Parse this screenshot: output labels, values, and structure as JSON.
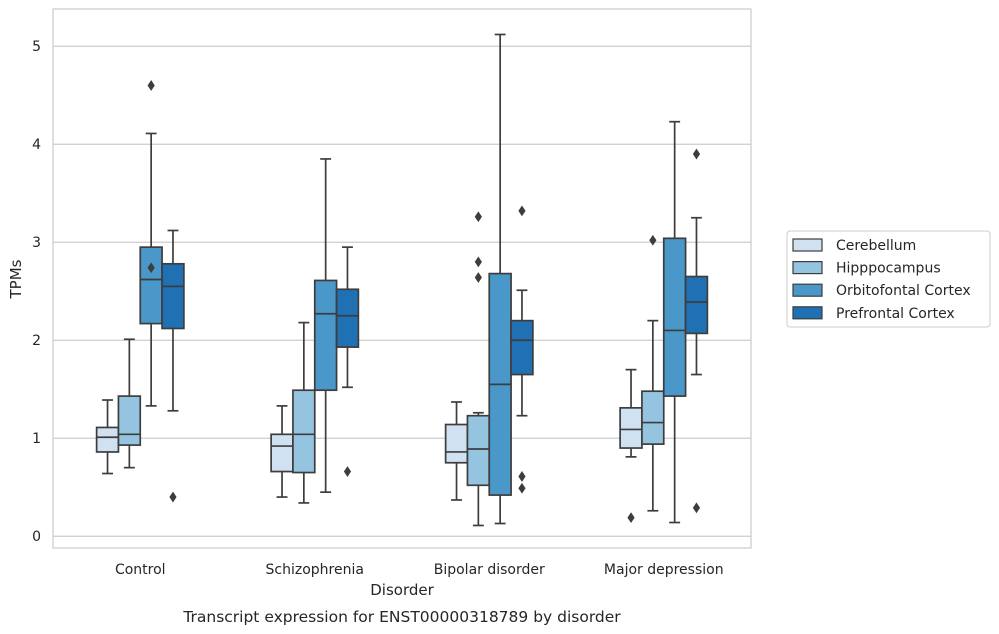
{
  "chart_data": {
    "type": "box",
    "xlabel": "Disorder",
    "ylabel": "TPMs",
    "caption": "Transcript expression for ENST00000318789 by disorder",
    "ylim": [
      -0.12,
      5.38
    ],
    "yticks": [
      0,
      1,
      2,
      3,
      4,
      5
    ],
    "grid": "horizontal",
    "legend_placement": "right-center",
    "categories": [
      "Control",
      "Schizophrenia",
      "Bipolar disorder",
      "Major depression"
    ],
    "series": [
      {
        "name": "Cerebellum",
        "color": "#d0e1f2",
        "boxes": [
          {
            "whisker_low": 0.64,
            "q1": 0.86,
            "median": 1.01,
            "q3": 1.11,
            "whisker_high": 1.39,
            "outliers": []
          },
          {
            "whisker_low": 0.4,
            "q1": 0.66,
            "median": 0.92,
            "q3": 1.04,
            "whisker_high": 1.33,
            "outliers": []
          },
          {
            "whisker_low": 0.37,
            "q1": 0.75,
            "median": 0.86,
            "q3": 1.14,
            "whisker_high": 1.37,
            "outliers": []
          },
          {
            "whisker_low": 0.81,
            "q1": 0.9,
            "median": 1.09,
            "q3": 1.31,
            "whisker_high": 1.7,
            "outliers": [
              0.19
            ]
          }
        ]
      },
      {
        "name": "Hipppocampus",
        "color": "#94c4df",
        "boxes": [
          {
            "whisker_low": 0.7,
            "q1": 0.93,
            "median": 1.04,
            "q3": 1.43,
            "whisker_high": 2.01,
            "outliers": []
          },
          {
            "whisker_low": 0.34,
            "q1": 0.65,
            "median": 1.04,
            "q3": 1.49,
            "whisker_high": 2.18,
            "outliers": []
          },
          {
            "whisker_low": 0.11,
            "q1": 0.52,
            "median": 0.89,
            "q3": 1.23,
            "whisker_high": 1.26,
            "outliers": [
              2.64,
              2.8,
              3.26
            ]
          },
          {
            "whisker_low": 0.26,
            "q1": 0.94,
            "median": 1.16,
            "q3": 1.48,
            "whisker_high": 2.2,
            "outliers": [
              3.02
            ]
          }
        ]
      },
      {
        "name": "Orbitofontal Cortex",
        "color": "#4a98c9",
        "boxes": [
          {
            "whisker_low": 1.33,
            "q1": 2.17,
            "median": 2.62,
            "q3": 2.95,
            "whisker_high": 4.11,
            "outliers": [
              2.74,
              4.6
            ]
          },
          {
            "whisker_low": 0.45,
            "q1": 1.49,
            "median": 2.27,
            "q3": 2.61,
            "whisker_high": 3.85,
            "outliers": []
          },
          {
            "whisker_low": 0.13,
            "q1": 0.42,
            "median": 1.55,
            "q3": 2.68,
            "whisker_high": 5.12,
            "outliers": []
          },
          {
            "whisker_low": 0.14,
            "q1": 1.43,
            "median": 2.1,
            "q3": 3.04,
            "whisker_high": 4.23,
            "outliers": []
          }
        ]
      },
      {
        "name": "Prefrontal Cortex",
        "color": "#2070b4",
        "boxes": [
          {
            "whisker_low": 1.28,
            "q1": 2.12,
            "median": 2.55,
            "q3": 2.78,
            "whisker_high": 3.12,
            "outliers": [
              0.4
            ]
          },
          {
            "whisker_low": 1.52,
            "q1": 1.93,
            "median": 2.25,
            "q3": 2.52,
            "whisker_high": 2.95,
            "outliers": [
              0.66
            ]
          },
          {
            "whisker_low": 1.23,
            "q1": 1.65,
            "median": 2.0,
            "q3": 2.2,
            "whisker_high": 2.51,
            "outliers": [
              0.49,
              0.61,
              3.32
            ]
          },
          {
            "whisker_low": 1.65,
            "q1": 2.07,
            "median": 2.39,
            "q3": 2.65,
            "whisker_high": 3.25,
            "outliers": [
              0.29,
              3.9
            ]
          }
        ]
      }
    ]
  }
}
